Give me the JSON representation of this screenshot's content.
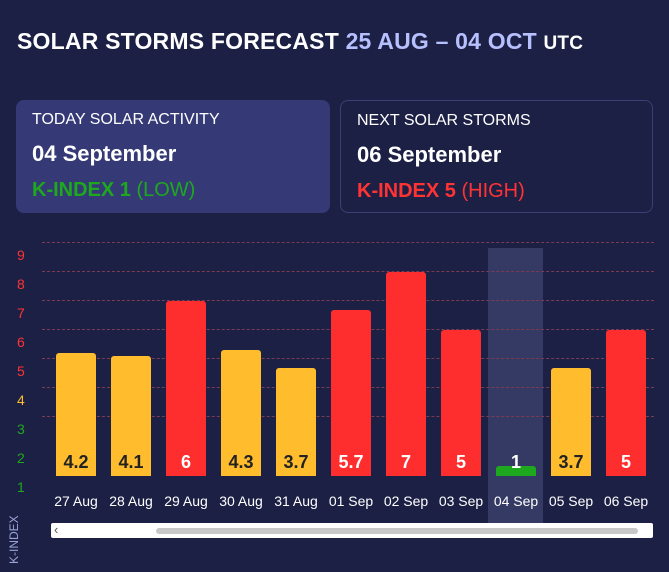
{
  "header": {
    "title_main": "SOLAR STORMS FORECAST",
    "title_range": "25 AUG – 04 OCT",
    "title_suffix": "UTC"
  },
  "today": {
    "label": "TODAY SOLAR ACTIVITY",
    "date": "04 September",
    "kindex": "K-INDEX 1",
    "level": "(LOW)"
  },
  "next": {
    "label": "NEXT SOLAR STORMS",
    "date": "06 September",
    "kindex": "K-INDEX 5",
    "level": "(HIGH)"
  },
  "colors": {
    "low": "#1ea81e",
    "moderate": "#ffbd2e",
    "high": "#ff2e2e",
    "tick_low": "#1ea81e",
    "tick_mid": "#ffbd2e",
    "tick_high": "#ff3333"
  },
  "chart_data": {
    "type": "bar",
    "title": "",
    "ylabel": "K-INDEX",
    "xlabel": "",
    "ylim": [
      1,
      9
    ],
    "yticks": [
      1,
      2,
      3,
      4,
      5,
      6,
      7,
      8,
      9
    ],
    "categories": [
      "27 Aug",
      "28 Aug",
      "29 Aug",
      "30 Aug",
      "31 Aug",
      "01 Sep",
      "02 Sep",
      "03 Sep",
      "04 Sep",
      "05 Sep",
      "06 Sep"
    ],
    "values": [
      4.2,
      4.1,
      6,
      4.3,
      3.7,
      5.7,
      7,
      5,
      1,
      3.7,
      5
    ],
    "value_labels": [
      "4.2",
      "4.1",
      "6",
      "4.3",
      "3.7",
      "5.7",
      "7",
      "5",
      "1",
      "3.7",
      "5"
    ],
    "levels": [
      "moderate",
      "moderate",
      "high",
      "moderate",
      "moderate",
      "high",
      "high",
      "high",
      "low",
      "moderate",
      "high"
    ],
    "highlighted_category": "04 Sep"
  }
}
